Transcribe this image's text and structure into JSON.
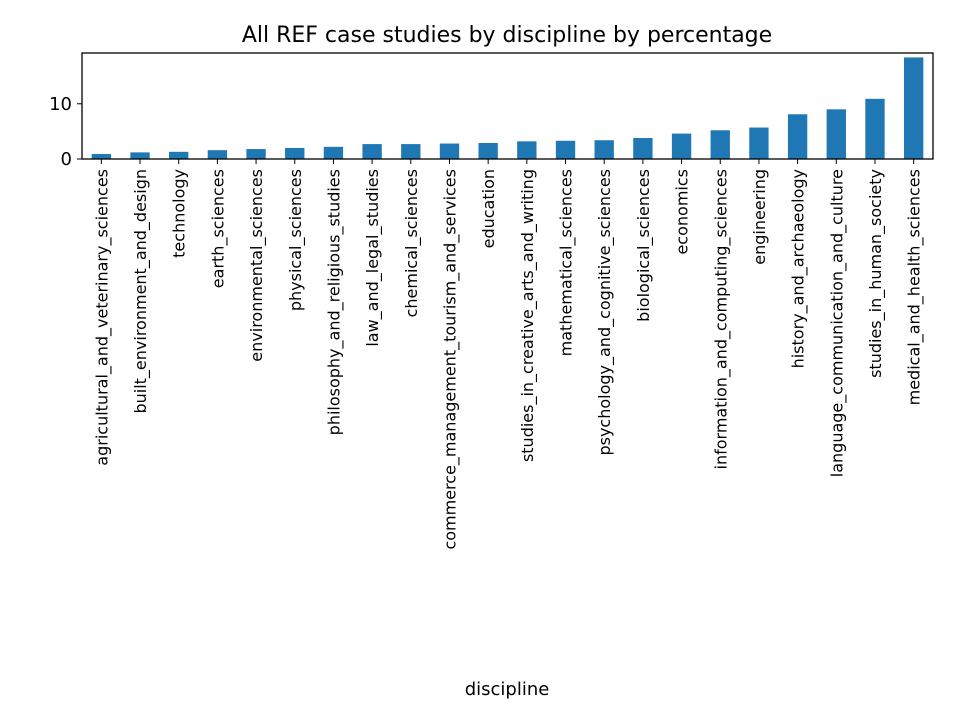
{
  "chart_data": {
    "type": "bar",
    "title": "All REF case studies by discipline by percentage",
    "xlabel": "discipline",
    "ylabel": "",
    "ylim": [
      0,
      19.2
    ],
    "yticks": [
      0,
      10
    ],
    "grid": false,
    "legend": "none",
    "bar_color": "#1f77b4",
    "categories": [
      "agricultural_and_veterinary_sciences",
      "built_environment_and_design",
      "technology",
      "earth_sciences",
      "environmental_sciences",
      "physical_sciences",
      "philosophy_and_religious_studies",
      "law_and_legal_studies",
      "chemical_sciences",
      "commerce_management_tourism_and_services",
      "education",
      "studies_in_creative_arts_and_writing",
      "mathematical_sciences",
      "psychology_and_cognitive_sciences",
      "biological_sciences",
      "economics",
      "information_and_computing_sciences",
      "engineering",
      "history_and_archaeology",
      "language_communication_and_culture",
      "studies_in_human_society",
      "medical_and_health_sciences"
    ],
    "values": [
      0.9,
      1.2,
      1.3,
      1.6,
      1.8,
      2.0,
      2.2,
      2.7,
      2.7,
      2.8,
      2.9,
      3.2,
      3.3,
      3.4,
      3.8,
      4.6,
      5.2,
      5.7,
      8.1,
      9.0,
      10.9,
      18.4
    ]
  }
}
